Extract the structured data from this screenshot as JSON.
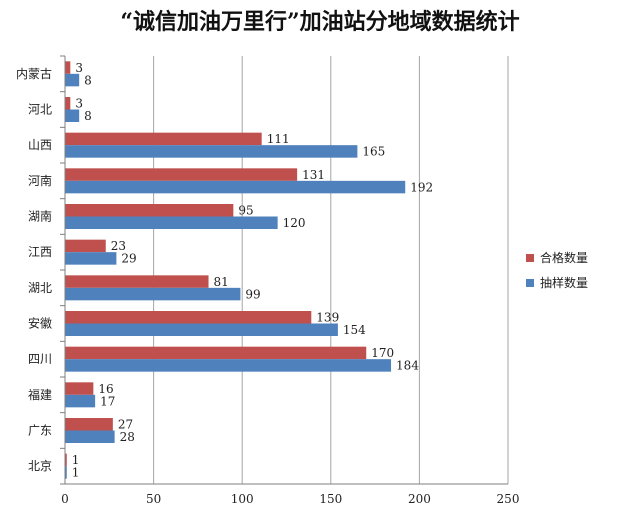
{
  "chart_data": {
    "type": "bar",
    "orientation": "horizontal",
    "title": "“诚信加油万里行”加油站分地域数据统计",
    "categories": [
      "内蒙古",
      "河北",
      "山西",
      "河南",
      "湖南",
      "江西",
      "湖北",
      "安徽",
      "四川",
      "福建",
      "广东",
      "北京"
    ],
    "series": [
      {
        "name": "合格数量",
        "color": "#c0504d",
        "values": [
          3,
          3,
          111,
          131,
          95,
          23,
          81,
          139,
          170,
          16,
          27,
          1
        ]
      },
      {
        "name": "抽样数量",
        "color": "#4f81bd",
        "values": [
          8,
          8,
          165,
          192,
          120,
          29,
          99,
          154,
          184,
          17,
          28,
          1
        ]
      }
    ],
    "xlim": [
      0,
      250
    ],
    "xticks": [
      "0",
      "50",
      "100",
      "150",
      "200",
      "250"
    ],
    "grid": true,
    "legend_position": "right"
  }
}
